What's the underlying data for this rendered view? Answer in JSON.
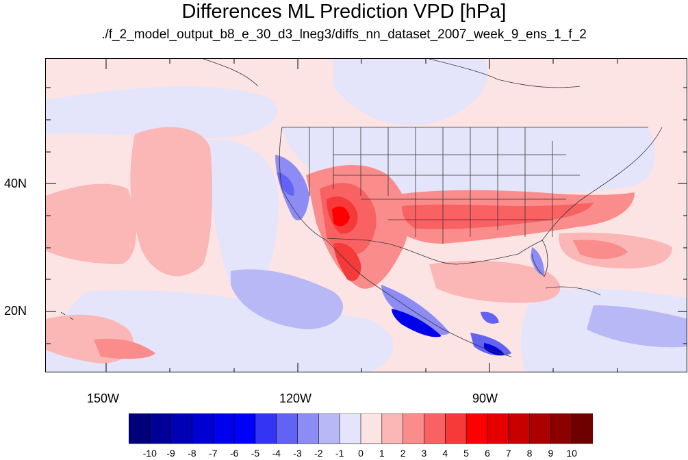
{
  "title": "Differences ML Prediction VPD [hPa]",
  "subtitle": "./f_2_model_output_b8_e_30_d3_lneg3/diffs_nn_dataset_2007_week_9_ens_1_f_2",
  "lat_labels": [
    "40N",
    "20N"
  ],
  "lon_labels": [
    "150W",
    "120W",
    "90W"
  ],
  "colorbar": {
    "labels": [
      "-10",
      "-9",
      "-8",
      "-7",
      "-6",
      "-5",
      "-4",
      "-3",
      "-2",
      "-1",
      "0",
      "1",
      "2",
      "3",
      "4",
      "5",
      "6",
      "7",
      "8",
      "9",
      "10"
    ],
    "colors": [
      "#00007a",
      "#000096",
      "#0000b4",
      "#0000d2",
      "#0000ec",
      "#0000ff",
      "#3434f4",
      "#6262f4",
      "#8c8cf4",
      "#b8b8f6",
      "#e4e4fa",
      "#fde4e4",
      "#fbb6b6",
      "#fa8c8c",
      "#f86262",
      "#f63a3a",
      "#ff0000",
      "#e60000",
      "#c80000",
      "#aa0000",
      "#8c0000",
      "#6e0000"
    ]
  },
  "map": {
    "lon_range": [
      -160,
      -60
    ],
    "lat_range": [
      10,
      58
    ],
    "background_color": "#fde4e4"
  }
}
